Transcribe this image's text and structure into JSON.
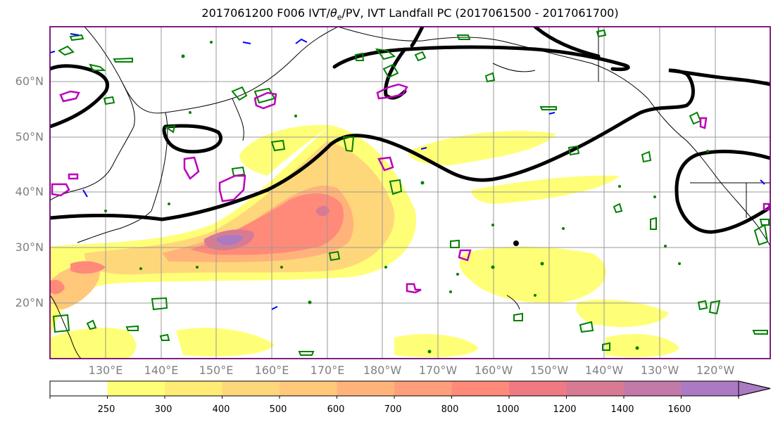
{
  "title": {
    "prefix": "2017061200 F006 IVT/",
    "theta": "θ",
    "theta_sub": "e",
    "suffix": "/PV, IVT Landfall PC (2017061500 - 2017061700)"
  },
  "map": {
    "lat_labels": [
      "60°N",
      "50°N",
      "40°N",
      "30°N",
      "20°N"
    ],
    "lon_labels": [
      "130°E",
      "140°E",
      "150°E",
      "160°E",
      "170°E",
      "180°W",
      "170°W",
      "160°W",
      "150°W",
      "140°W",
      "130°W",
      "120°W"
    ],
    "contour_colors": {
      "theta_e": "#000000",
      "pv_high": "#008000",
      "pv_low": "#0000ff",
      "landfall": "#bb00bb",
      "coast": "#000000"
    }
  },
  "colorbar": {
    "ticks": [
      "250",
      "300",
      "400",
      "500",
      "600",
      "700",
      "800",
      "1000",
      "1200",
      "1400",
      "1600"
    ],
    "colors": [
      "#ffffff",
      "#ffff77",
      "#ffec77",
      "#ffd77b",
      "#ffc87b",
      "#ffb37b",
      "#ff9e7b",
      "#ff8a79",
      "#f07a83",
      "#d97a94",
      "#c27aa8",
      "#aa7ac2"
    ]
  }
}
